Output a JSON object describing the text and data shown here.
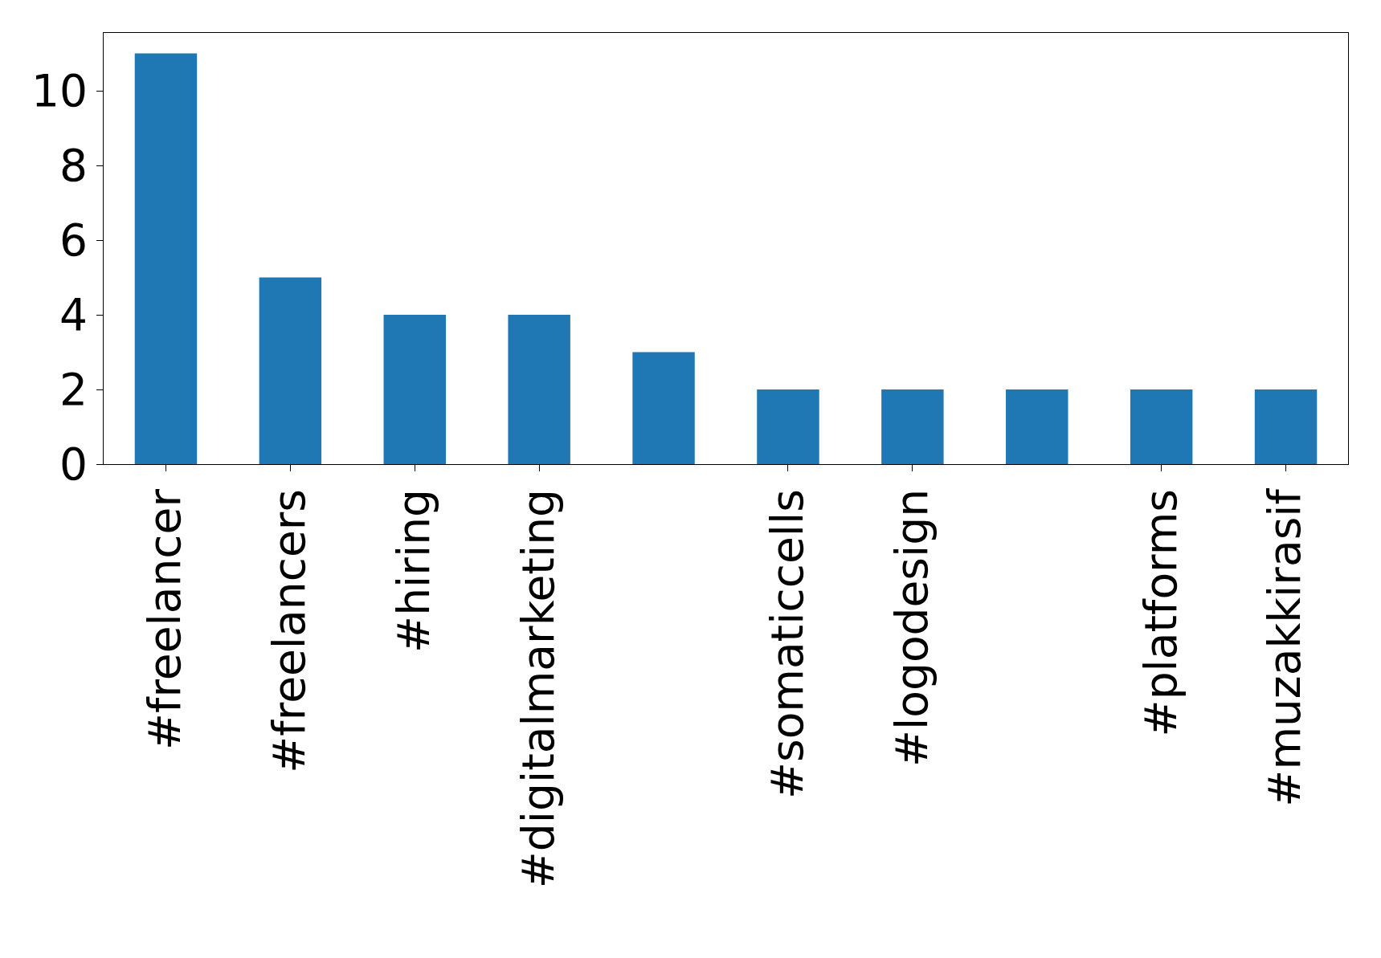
{
  "chart_data": {
    "type": "bar",
    "categories": [
      "#freelancer",
      "#freelancers",
      "#hiring",
      "#digitalmarketing",
      null,
      "#somaticcells",
      "#logodesign",
      null,
      "#platforms",
      "#muzakkirasif"
    ],
    "values": [
      11,
      5,
      4,
      4,
      3,
      2,
      2,
      2,
      2,
      2
    ],
    "color": "#1f77b4",
    "ylim": [
      0,
      11.55
    ],
    "yticks": [
      0,
      2,
      4,
      6,
      8,
      10
    ],
    "legend": false
  }
}
